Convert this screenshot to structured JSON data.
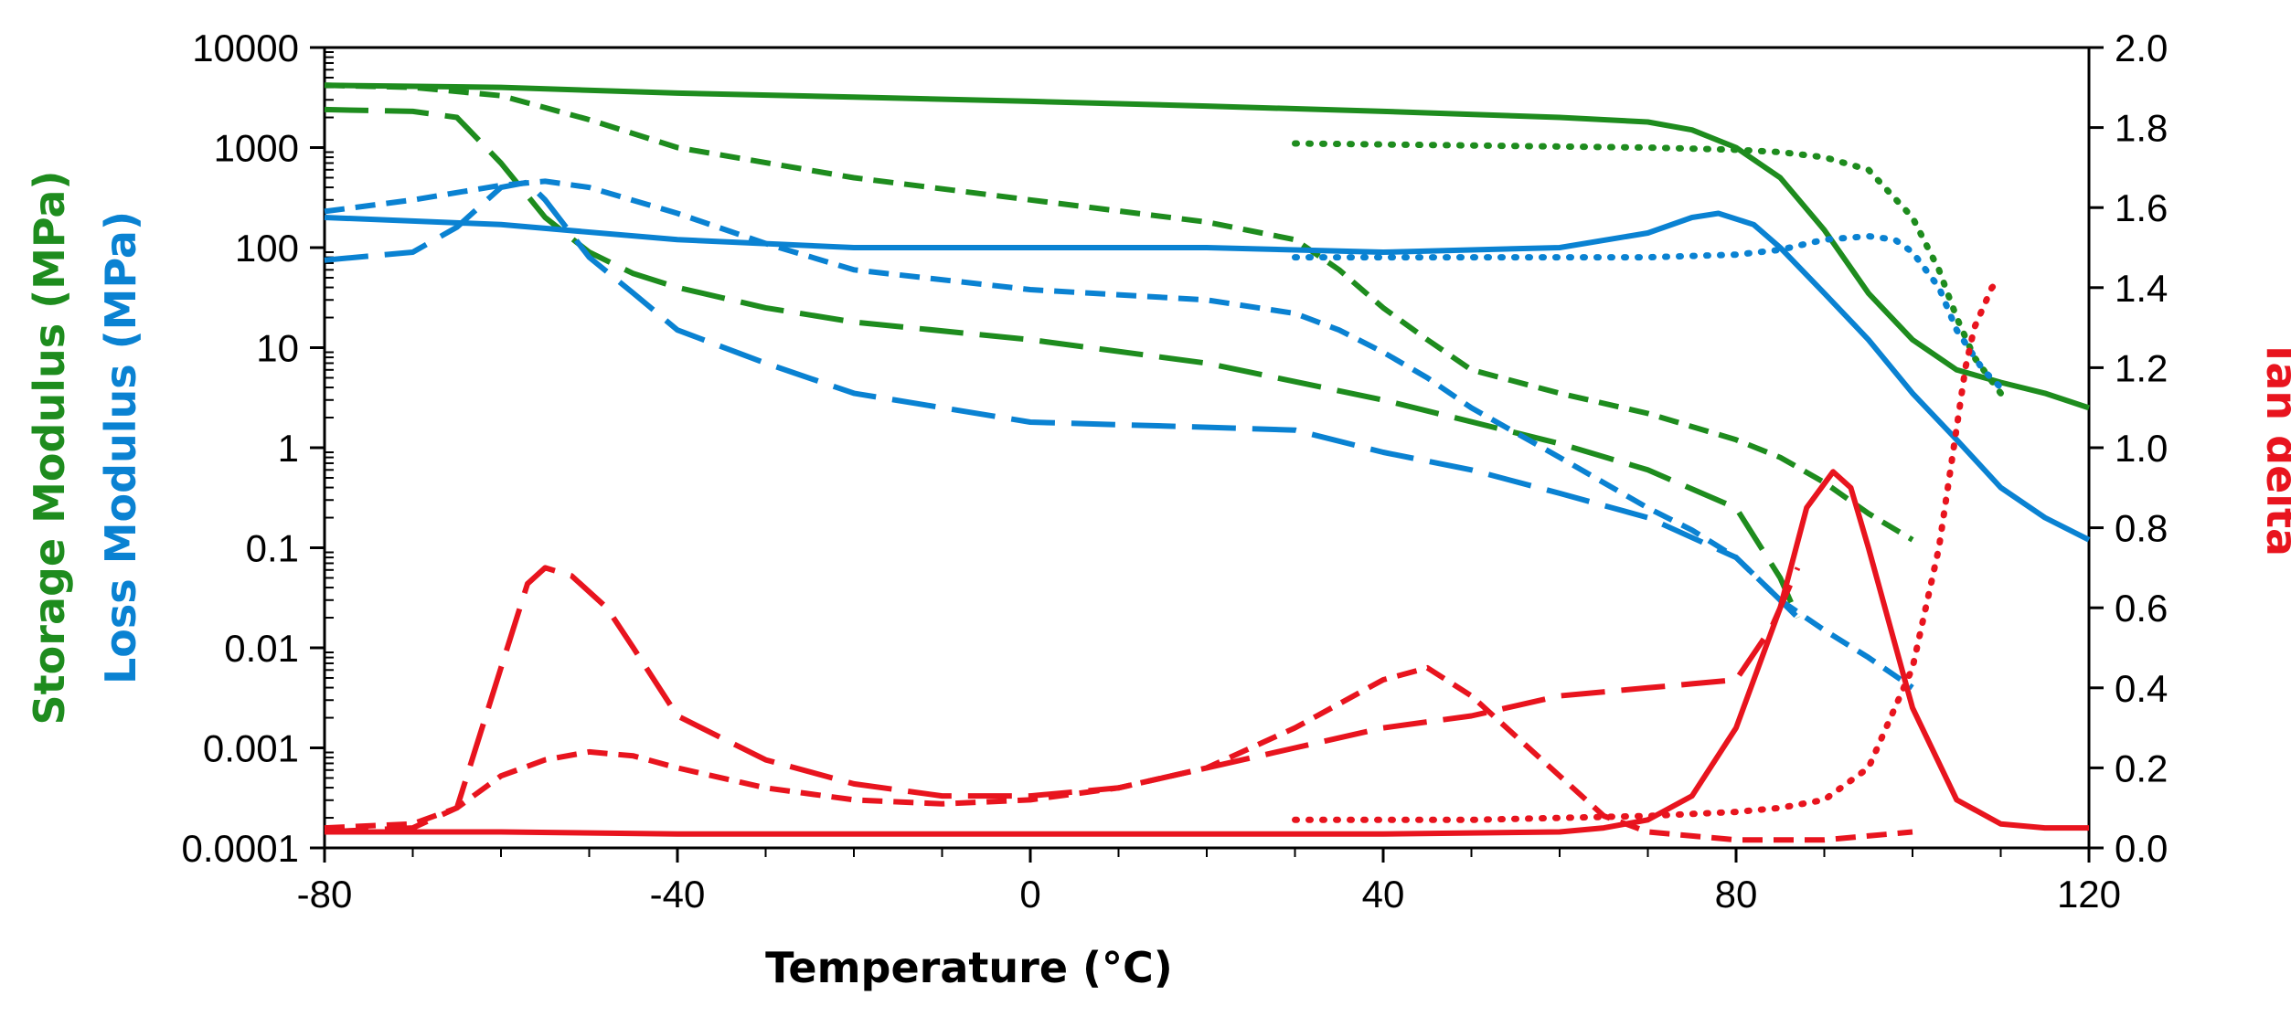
{
  "chart_data": {
    "type": "line",
    "xlabel": "Temperature (°C)",
    "ylabel_left_storage": "Storage Modulus (MPa)",
    "ylabel_left_loss": "Loss Modulus (MPa)",
    "ylabel_right": "Tan delta",
    "xlim": [
      -80,
      120
    ],
    "ylim_left": [
      0.0001,
      10000
    ],
    "ylim_right": [
      0,
      2
    ],
    "xticks": [
      "-80",
      "-40",
      "0",
      "40",
      "80",
      "120"
    ],
    "yticks_left": [
      "10000",
      "1000",
      "100",
      "10",
      "1",
      "0.1",
      "0.01",
      "0.001",
      "0.0001"
    ],
    "yticks_right": [
      "2.0",
      "1.8",
      "1.6",
      "1.4",
      "1.2",
      "1.0",
      "0.8",
      "0.6",
      "0.4",
      "0.2",
      "0.0"
    ],
    "colors": {
      "storage": "#1e8c1e",
      "loss": "#0a82d2",
      "tan": "#e8141e"
    },
    "series": [
      {
        "name": "Storage modulus (solid)",
        "group": "storage",
        "axis": "left",
        "style": "solid",
        "x": [
          -80,
          -60,
          -40,
          -20,
          0,
          20,
          40,
          60,
          70,
          75,
          80,
          85,
          90,
          95,
          100,
          105,
          110,
          115,
          120
        ],
        "y": [
          4200,
          4000,
          3500,
          3200,
          2900,
          2600,
          2300,
          2000,
          1800,
          1500,
          1000,
          500,
          150,
          35,
          12,
          6,
          4.5,
          3.5,
          2.5
        ]
      },
      {
        "name": "Storage modulus (short dash)",
        "group": "storage",
        "axis": "left",
        "style": "shortdash",
        "x": [
          -80,
          -70,
          -60,
          -50,
          -40,
          -20,
          0,
          20,
          30,
          35,
          40,
          45,
          50,
          60,
          70,
          80,
          85,
          90,
          95,
          100
        ],
        "y": [
          4200,
          4000,
          3300,
          1900,
          1000,
          500,
          300,
          180,
          120,
          60,
          25,
          12,
          6,
          3.5,
          2.2,
          1.2,
          0.8,
          0.45,
          0.22,
          0.12
        ]
      },
      {
        "name": "Storage modulus (long dash)",
        "group": "storage",
        "axis": "left",
        "style": "longdash",
        "x": [
          -80,
          -70,
          -65,
          -60,
          -55,
          -50,
          -45,
          -40,
          -30,
          -20,
          0,
          20,
          40,
          60,
          70,
          80,
          85,
          87
        ],
        "y": [
          2400,
          2300,
          2000,
          700,
          200,
          90,
          55,
          40,
          25,
          18,
          12,
          7,
          3,
          1.1,
          0.6,
          0.25,
          0.05,
          0.02
        ]
      },
      {
        "name": "Storage modulus (dotted)",
        "group": "storage",
        "axis": "left",
        "style": "dotted",
        "x": [
          30,
          50,
          70,
          80,
          85,
          90,
          95,
          100,
          103,
          105,
          107,
          110
        ],
        "y": [
          1100,
          1050,
          1000,
          950,
          900,
          800,
          600,
          200,
          60,
          20,
          8,
          3.5
        ]
      },
      {
        "name": "Loss modulus (solid)",
        "group": "loss",
        "axis": "left",
        "style": "solid",
        "x": [
          -80,
          -60,
          -40,
          -20,
          0,
          20,
          40,
          60,
          70,
          75,
          78,
          82,
          85,
          90,
          95,
          100,
          105,
          110,
          115,
          120
        ],
        "y": [
          200,
          170,
          120,
          100,
          100,
          100,
          90,
          100,
          140,
          200,
          220,
          170,
          100,
          35,
          12,
          3.5,
          1.2,
          0.4,
          0.2,
          0.12
        ]
      },
      {
        "name": "Loss modulus (short dash)",
        "group": "loss",
        "axis": "left",
        "style": "shortdash",
        "x": [
          -80,
          -70,
          -60,
          -55,
          -50,
          -40,
          -30,
          -20,
          0,
          20,
          30,
          35,
          40,
          45,
          50,
          60,
          70,
          75,
          80,
          85,
          90,
          95,
          100
        ],
        "y": [
          230,
          300,
          420,
          460,
          400,
          220,
          110,
          60,
          38,
          30,
          22,
          15,
          9,
          5,
          2.5,
          0.8,
          0.25,
          0.15,
          0.08,
          0.03,
          0.015,
          0.008,
          0.004
        ]
      },
      {
        "name": "Loss modulus (long dash)",
        "group": "loss",
        "axis": "left",
        "style": "longdash",
        "x": [
          -80,
          -70,
          -65,
          -60,
          -57,
          -55,
          -50,
          -45,
          -40,
          -30,
          -20,
          0,
          20,
          30,
          40,
          50,
          60,
          70,
          80,
          85,
          87
        ],
        "y": [
          75,
          90,
          160,
          400,
          450,
          300,
          80,
          35,
          15,
          7,
          3.5,
          1.8,
          1.6,
          1.5,
          0.9,
          0.6,
          0.35,
          0.2,
          0.08,
          0.03,
          0.02
        ]
      },
      {
        "name": "Loss modulus (dotted)",
        "group": "loss",
        "axis": "left",
        "style": "dotted",
        "x": [
          30,
          50,
          70,
          80,
          85,
          90,
          95,
          98,
          100,
          103,
          105,
          108,
          110
        ],
        "y": [
          80,
          80,
          80,
          85,
          95,
          120,
          130,
          120,
          90,
          40,
          15,
          6,
          4
        ]
      },
      {
        "name": "Tan delta (solid)",
        "group": "tan",
        "axis": "right",
        "style": "solid",
        "x": [
          -80,
          -60,
          -40,
          -20,
          0,
          20,
          40,
          60,
          65,
          70,
          75,
          80,
          85,
          88,
          91,
          93,
          95,
          100,
          105,
          110,
          115,
          120
        ],
        "y": [
          0.04,
          0.04,
          0.035,
          0.035,
          0.035,
          0.035,
          0.035,
          0.04,
          0.05,
          0.07,
          0.13,
          0.3,
          0.6,
          0.85,
          0.94,
          0.9,
          0.75,
          0.35,
          0.12,
          0.06,
          0.05,
          0.05
        ]
      },
      {
        "name": "Tan delta (short dash)",
        "group": "tan",
        "axis": "right",
        "style": "shortdash",
        "x": [
          -80,
          -70,
          -65,
          -60,
          -55,
          -50,
          -45,
          -40,
          -30,
          -20,
          -10,
          0,
          10,
          20,
          30,
          40,
          45,
          50,
          60,
          65,
          70,
          75,
          80,
          90,
          100
        ],
        "y": [
          0.05,
          0.06,
          0.1,
          0.18,
          0.22,
          0.24,
          0.23,
          0.2,
          0.15,
          0.12,
          0.11,
          0.12,
          0.15,
          0.2,
          0.3,
          0.42,
          0.45,
          0.38,
          0.18,
          0.08,
          0.04,
          0.03,
          0.02,
          0.02,
          0.04
        ]
      },
      {
        "name": "Tan delta (long dash)",
        "group": "tan",
        "axis": "right",
        "style": "longdash",
        "x": [
          -80,
          -70,
          -65,
          -60,
          -57,
          -55,
          -52,
          -48,
          -45,
          -40,
          -30,
          -20,
          -10,
          0,
          10,
          20,
          30,
          40,
          50,
          60,
          70,
          75,
          80,
          84,
          87
        ],
        "y": [
          0.04,
          0.05,
          0.1,
          0.45,
          0.66,
          0.7,
          0.68,
          0.6,
          0.5,
          0.33,
          0.22,
          0.16,
          0.13,
          0.13,
          0.15,
          0.2,
          0.25,
          0.3,
          0.33,
          0.38,
          0.4,
          0.41,
          0.42,
          0.55,
          0.7
        ]
      },
      {
        "name": "Tan delta (dotted)",
        "group": "tan",
        "axis": "right",
        "style": "dotted",
        "x": [
          30,
          50,
          70,
          80,
          85,
          90,
          95,
          100,
          103,
          105,
          106,
          107,
          108,
          109,
          110
        ],
        "y": [
          0.07,
          0.07,
          0.08,
          0.09,
          0.1,
          0.12,
          0.2,
          0.45,
          0.75,
          1.05,
          1.2,
          1.3,
          1.35,
          1.4,
          1.42
        ]
      }
    ]
  }
}
